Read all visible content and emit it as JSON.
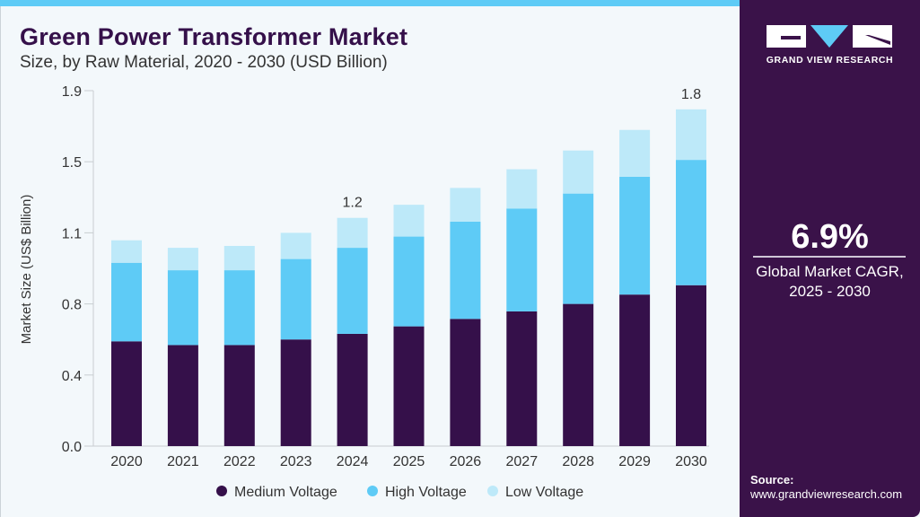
{
  "header": {
    "title": "Green Power Transformer Market",
    "subtitle": "Size, by Raw Material, 2020 - 2030 (USD Billion)"
  },
  "sidebar": {
    "brand": "GRAND VIEW RESEARCH",
    "cagr_value": "6.9%",
    "cagr_label_line1": "Global Market CAGR,",
    "cagr_label_line2": "2025 - 2030",
    "source_heading": "Source:",
    "source_url": "www.grandviewresearch.com"
  },
  "colors": {
    "brand_dark": "#35104a",
    "sidebar_bg": "#3a1249",
    "accent": "#5ecbf6"
  },
  "chart_data": {
    "type": "bar",
    "stacked": true,
    "title": "Green Power Transformer Market",
    "subtitle": "Size, by Raw Material, 2020 - 2030 (USD Billion)",
    "xlabel": "",
    "ylabel": "Market Size (US$ Billion)",
    "ylim": [
      0,
      1.9
    ],
    "yticks": [
      0.0,
      0.38,
      0.76,
      1.14,
      1.52,
      1.9
    ],
    "ytick_labels": [
      "0.0",
      "0.4",
      "0.8",
      "1.1",
      "1.5",
      "1.9"
    ],
    "grid": false,
    "legend_position": "bottom",
    "categories": [
      "2020",
      "2021",
      "2022",
      "2023",
      "2024",
      "2025",
      "2026",
      "2027",
      "2028",
      "2029",
      "2030"
    ],
    "series": [
      {
        "name": "Medium Voltage",
        "color": "#35104a",
        "values": [
          0.56,
          0.54,
          0.54,
          0.57,
          0.6,
          0.64,
          0.68,
          0.72,
          0.76,
          0.81,
          0.86
        ]
      },
      {
        "name": "High Voltage",
        "color": "#5ecbf6",
        "values": [
          0.42,
          0.4,
          0.4,
          0.43,
          0.46,
          0.48,
          0.52,
          0.55,
          0.59,
          0.63,
          0.67
        ]
      },
      {
        "name": "Low Voltage",
        "color": "#bde9f9",
        "values": [
          0.12,
          0.12,
          0.13,
          0.14,
          0.16,
          0.17,
          0.18,
          0.21,
          0.23,
          0.25,
          0.27
        ]
      }
    ],
    "annotations": [
      {
        "category": "2024",
        "text": "1.2"
      },
      {
        "category": "2030",
        "text": "1.8"
      }
    ]
  }
}
